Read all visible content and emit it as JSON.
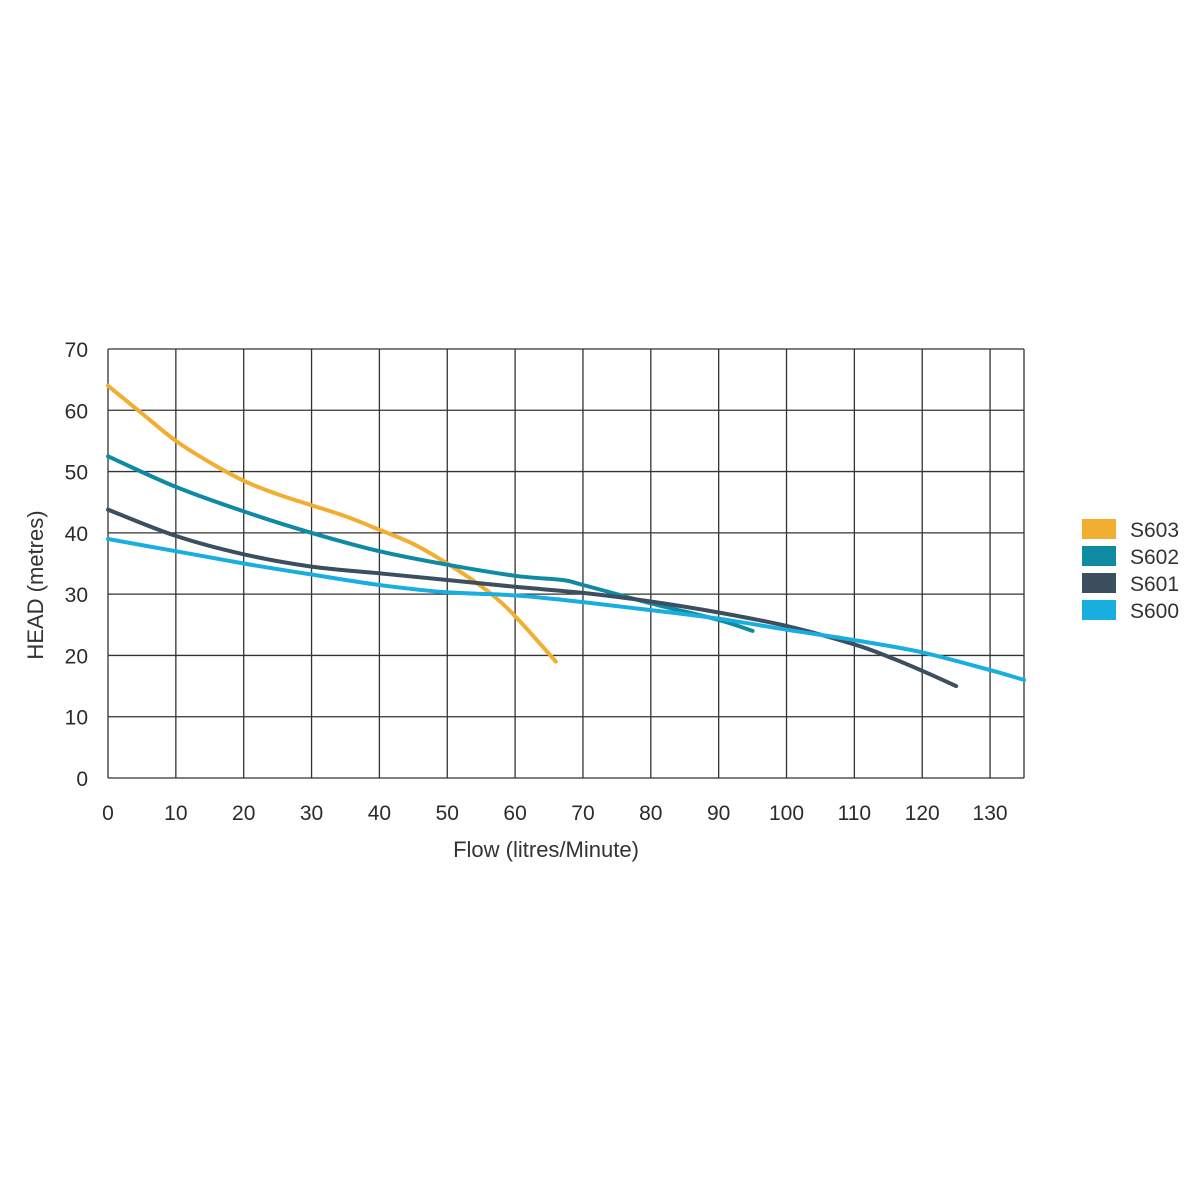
{
  "chart_data": {
    "type": "line",
    "xlabel": "Flow (litres/Minute)",
    "ylabel": "HEAD (metres)",
    "xlim": [
      0,
      135
    ],
    "ylim": [
      0,
      70
    ],
    "xticks": [
      0,
      10,
      20,
      30,
      40,
      50,
      60,
      70,
      80,
      90,
      100,
      110,
      120,
      130
    ],
    "yticks": [
      0,
      10,
      20,
      30,
      40,
      50,
      60,
      70
    ],
    "grid": true,
    "legend_position": "right",
    "series": [
      {
        "name": "S603",
        "color": "#F2AE30",
        "x": [
          0,
          5,
          10,
          15,
          20,
          25,
          30,
          35,
          40,
          45,
          50,
          55,
          58,
          60,
          62,
          64,
          66
        ],
        "y": [
          64,
          59.5,
          55,
          51.5,
          48.5,
          46.3,
          44.5,
          42.7,
          40.5,
          38.2,
          35,
          31.3,
          28.6,
          26.4,
          24,
          21.5,
          19
        ]
      },
      {
        "name": "S602",
        "color": "#0E8BA3",
        "x": [
          0,
          10,
          20,
          30,
          40,
          50,
          60,
          67,
          70,
          80,
          90,
          95
        ],
        "y": [
          52.5,
          47.5,
          43.5,
          40,
          37,
          34.8,
          33,
          32.3,
          31.5,
          28.5,
          25.8,
          24
        ]
      },
      {
        "name": "S601",
        "color": "#3B4F5E",
        "x": [
          0,
          10,
          20,
          30,
          40,
          50,
          60,
          70,
          80,
          90,
          100,
          110,
          115,
          120,
          125
        ],
        "y": [
          43.8,
          39.5,
          36.5,
          34.5,
          33.4,
          32.3,
          31.2,
          30.2,
          28.8,
          27,
          24.8,
          21.8,
          19.8,
          17.5,
          15
        ]
      },
      {
        "name": "S600",
        "color": "#19AEE0",
        "x": [
          0,
          10,
          20,
          30,
          40,
          50,
          60,
          70,
          80,
          90,
          100,
          110,
          120,
          130,
          135
        ],
        "y": [
          39,
          37,
          35,
          33.2,
          31.5,
          30.3,
          29.8,
          28.7,
          27.4,
          26,
          24.2,
          22.5,
          20.5,
          17.6,
          16
        ]
      }
    ]
  }
}
